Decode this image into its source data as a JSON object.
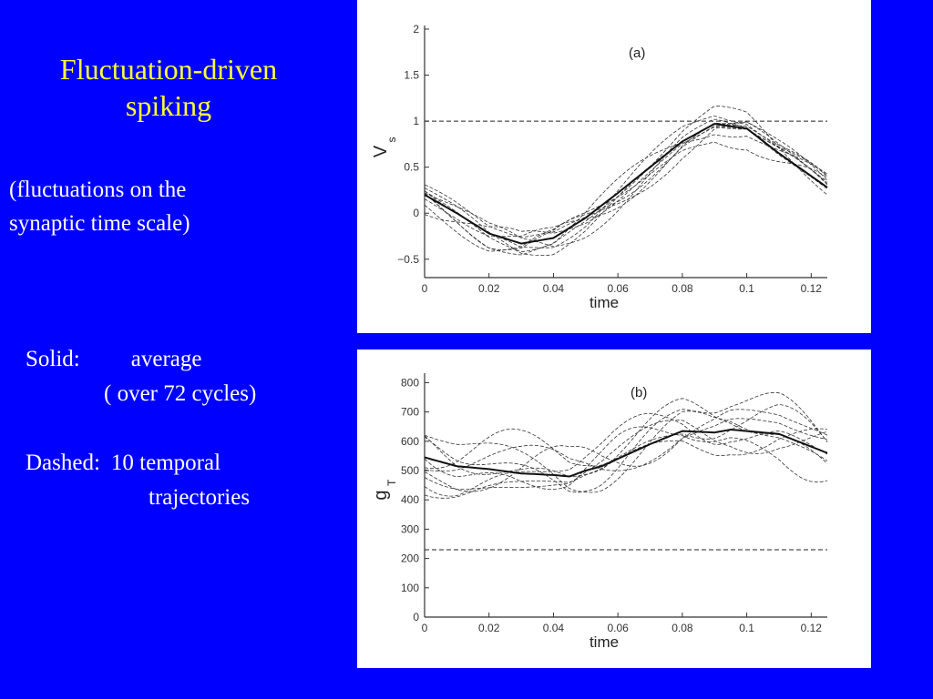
{
  "slide": {
    "title_lines": [
      "Fluctuation-driven",
      "spiking"
    ],
    "subtitle_lines": [
      "(fluctuations on the",
      "synaptic time scale)"
    ],
    "legend": {
      "solid_label": "Solid:",
      "solid_desc": "average",
      "solid_desc2": "( over 72 cycles)",
      "dashed_label": "Dashed:",
      "dashed_desc": "10 temporal",
      "dashed_desc2": "trajectories"
    },
    "background_color": "#0000FF",
    "title_color": "#FFFF33",
    "text_color": "#FFFFFF"
  },
  "chart_data": [
    {
      "type": "line",
      "panel_label": "(a)",
      "xlabel": "time",
      "ylabel": "V",
      "ylabel_sub": "s",
      "xlim": [
        0,
        0.125
      ],
      "ylim": [
        -0.7,
        2
      ],
      "xticks": [
        0,
        0.02,
        0.04,
        0.06,
        0.08,
        0.1,
        0.12
      ],
      "xtick_labels": [
        "0",
        "0.02",
        "0.04",
        "0.06",
        "0.08",
        "0.1",
        "0.12"
      ],
      "yticks": [
        -0.5,
        0,
        0.5,
        1,
        1.5,
        2
      ],
      "ytick_labels": [
        "−0.5",
        "0",
        "0.5",
        "1",
        "1.5",
        "2"
      ],
      "threshold": 1,
      "trajectory_count": 10,
      "trajectory_spread": 0.2,
      "average": {
        "x": [
          0,
          0.01,
          0.02,
          0.03,
          0.04,
          0.05,
          0.06,
          0.07,
          0.08,
          0.09,
          0.1,
          0.11,
          0.125
        ],
        "y": [
          0.2,
          0.0,
          -0.22,
          -0.33,
          -0.27,
          -0.05,
          0.22,
          0.5,
          0.78,
          0.97,
          0.92,
          0.65,
          0.28
        ]
      }
    },
    {
      "type": "line",
      "panel_label": "(b)",
      "xlabel": "time",
      "ylabel": "g",
      "ylabel_sub": "T",
      "xlim": [
        0,
        0.125
      ],
      "ylim": [
        0,
        820
      ],
      "xticks": [
        0,
        0.02,
        0.04,
        0.06,
        0.08,
        0.1,
        0.12
      ],
      "xtick_labels": [
        "0",
        "0.02",
        "0.04",
        "0.06",
        "0.08",
        "0.1",
        "0.12"
      ],
      "yticks": [
        0,
        100,
        200,
        300,
        400,
        500,
        600,
        700,
        800
      ],
      "ytick_labels": [
        "0",
        "100",
        "200",
        "300",
        "400",
        "500",
        "600",
        "700",
        "800"
      ],
      "threshold": 230,
      "trajectory_count": 10,
      "trajectory_spread": 120,
      "average": {
        "x": [
          0,
          0.01,
          0.02,
          0.03,
          0.04,
          0.045,
          0.05,
          0.055,
          0.06,
          0.07,
          0.08,
          0.09,
          0.095,
          0.1,
          0.11,
          0.125
        ],
        "y": [
          545,
          515,
          505,
          490,
          485,
          480,
          500,
          515,
          540,
          590,
          635,
          630,
          640,
          635,
          625,
          560
        ]
      }
    }
  ]
}
